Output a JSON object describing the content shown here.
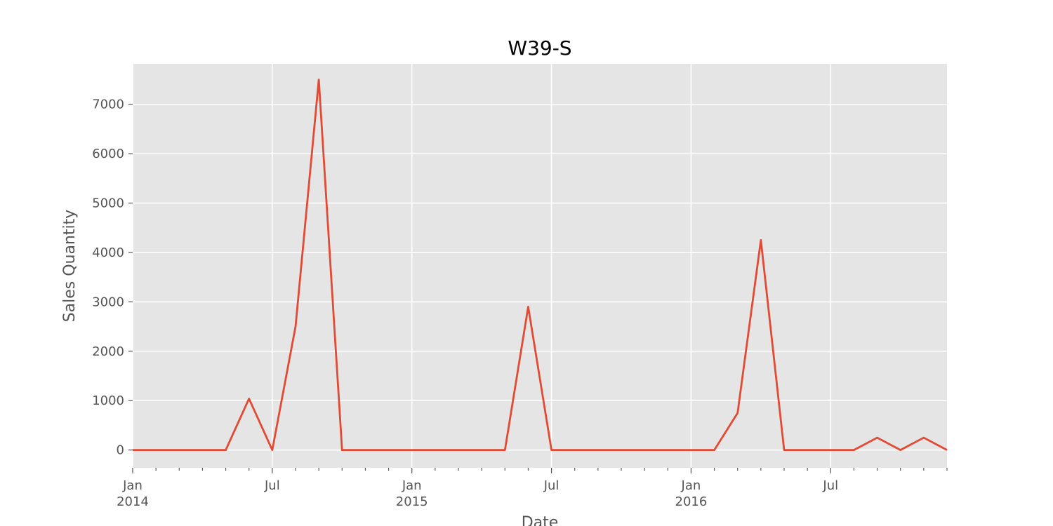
{
  "chart_data": {
    "type": "line",
    "title": "W39-S",
    "xlabel": "Date",
    "ylabel": "Sales Quantity",
    "xlim": [
      "2014-01",
      "2016-12"
    ],
    "ylim": [
      -360,
      7820
    ],
    "grid": true,
    "y_ticks": [
      0,
      1000,
      2000,
      3000,
      4000,
      5000,
      6000,
      7000
    ],
    "x_ticks": [
      {
        "date": "2014-01",
        "label": "Jan",
        "sublabel": "2014"
      },
      {
        "date": "2014-07",
        "label": "Jul",
        "sublabel": ""
      },
      {
        "date": "2015-01",
        "label": "Jan",
        "sublabel": "2015"
      },
      {
        "date": "2015-07",
        "label": "Jul",
        "sublabel": ""
      },
      {
        "date": "2016-01",
        "label": "Jan",
        "sublabel": "2016"
      },
      {
        "date": "2016-07",
        "label": "Jul",
        "sublabel": ""
      }
    ],
    "series": [
      {
        "color": "#e24a33",
        "x": [
          "2014-01",
          "2014-02",
          "2014-03",
          "2014-04",
          "2014-05",
          "2014-06",
          "2014-07",
          "2014-08",
          "2014-09",
          "2014-10",
          "2014-11",
          "2014-12",
          "2015-01",
          "2015-02",
          "2015-03",
          "2015-04",
          "2015-05",
          "2015-06",
          "2015-07",
          "2015-08",
          "2015-09",
          "2015-10",
          "2015-11",
          "2015-12",
          "2016-01",
          "2016-02",
          "2016-03",
          "2016-04",
          "2016-05",
          "2016-06",
          "2016-07",
          "2016-08",
          "2016-09",
          "2016-10",
          "2016-11",
          "2016-12"
        ],
        "values": [
          0,
          0,
          0,
          0,
          0,
          1040,
          0,
          2500,
          7500,
          0,
          0,
          0,
          0,
          0,
          0,
          0,
          0,
          2900,
          0,
          0,
          0,
          0,
          0,
          0,
          0,
          0,
          750,
          4250,
          0,
          0,
          0,
          0,
          250,
          0,
          250,
          0
        ]
      }
    ]
  }
}
